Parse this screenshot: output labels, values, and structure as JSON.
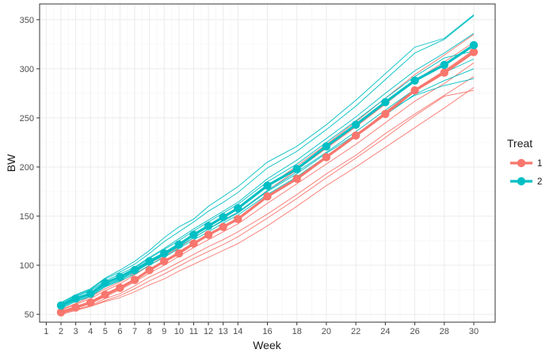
{
  "chart_data": {
    "type": "line",
    "xlabel": "Week",
    "ylabel": "BW",
    "xlim": [
      0.55,
      31.45
    ],
    "ylim": [
      42,
      366
    ],
    "x_ticks": [
      1,
      2,
      3,
      4,
      5,
      6,
      7,
      8,
      9,
      10,
      11,
      12,
      13,
      14,
      16,
      18,
      20,
      22,
      24,
      26,
      28,
      30
    ],
    "y_ticks": [
      50,
      100,
      150,
      200,
      250,
      300,
      350
    ],
    "grid": true,
    "legend": {
      "title": "Treat",
      "placement": "right"
    },
    "colors": {
      "1": "#F8766D",
      "2": "#00BFC4"
    },
    "weeks": [
      2,
      3,
      4,
      5,
      6,
      7,
      8,
      9,
      10,
      11,
      12,
      13,
      14,
      16,
      18,
      20,
      22,
      24,
      26,
      28,
      30
    ],
    "series": [
      {
        "name": "1",
        "values": [
          52,
          57,
          62,
          70,
          77,
          85,
          95,
          104,
          112,
          122,
          131,
          139,
          147,
          170,
          188,
          210,
          232,
          254,
          278,
          296,
          317
        ]
      },
      {
        "name": "2",
        "values": [
          59,
          66,
          71,
          82,
          88,
          95,
          104,
          112,
          121,
          131,
          140,
          149,
          158,
          181,
          198,
          221,
          243,
          266,
          288,
          304,
          324
        ]
      }
    ],
    "individual_series": [
      {
        "treat": "1",
        "values": [
          50,
          54,
          58,
          63,
          67,
          73,
          80,
          86,
          94,
          101,
          108,
          115,
          122,
          140,
          160,
          181,
          200,
          220,
          240,
          260,
          281
        ]
      },
      {
        "treat": "1",
        "values": [
          51,
          55,
          59,
          66,
          71,
          79,
          88,
          95,
          103,
          111,
          119,
          126,
          134,
          152,
          172,
          193,
          212,
          234,
          254,
          273,
          292
        ]
      },
      {
        "treat": "1",
        "values": [
          53,
          58,
          63,
          71,
          78,
          86,
          96,
          104,
          114,
          123,
          131,
          140,
          148,
          169,
          189,
          211,
          232,
          256,
          279,
          298,
          319
        ]
      },
      {
        "treat": "1",
        "values": [
          54,
          60,
          66,
          74,
          81,
          90,
          100,
          109,
          118,
          128,
          137,
          146,
          154,
          176,
          197,
          219,
          241,
          264,
          288,
          307,
          327
        ]
      },
      {
        "treat": "1",
        "values": [
          55,
          61,
          68,
          76,
          83,
          92,
          103,
          112,
          121,
          131,
          141,
          150,
          158,
          180,
          201,
          223,
          246,
          270,
          294,
          314,
          335
        ]
      },
      {
        "treat": "1",
        "values": [
          52,
          57,
          62,
          70,
          77,
          85,
          95,
          104,
          112,
          122,
          131,
          139,
          147,
          170,
          188,
          210,
          232,
          254,
          278,
          296,
          317
        ]
      },
      {
        "treat": "1",
        "values": [
          51,
          56,
          61,
          68,
          75,
          83,
          92,
          100,
          109,
          118,
          126,
          134,
          142,
          163,
          183,
          203,
          223,
          245,
          267,
          285,
          306
        ]
      },
      {
        "treat": "1",
        "values": [
          50,
          54,
          58,
          64,
          69,
          76,
          84,
          91,
          99,
          107,
          114,
          121,
          129,
          148,
          168,
          189,
          209,
          230,
          252,
          272,
          278
        ]
      },
      {
        "treat": "2",
        "values": [
          56,
          63,
          68,
          78,
          84,
          91,
          100,
          108,
          117,
          126,
          134,
          143,
          151,
          172,
          190,
          211,
          231,
          253,
          274,
          288,
          300
        ]
      },
      {
        "treat": "2",
        "values": [
          58,
          65,
          70,
          80,
          86,
          93,
          102,
          110,
          119,
          128,
          137,
          146,
          154,
          176,
          195,
          215,
          236,
          258,
          279,
          296,
          310
        ]
      },
      {
        "treat": "2",
        "values": [
          59,
          66,
          71,
          82,
          88,
          95,
          104,
          112,
          121,
          131,
          140,
          149,
          158,
          181,
          198,
          221,
          243,
          266,
          288,
          304,
          324
        ]
      },
      {
        "treat": "2",
        "values": [
          60,
          68,
          74,
          84,
          91,
          98,
          108,
          117,
          127,
          137,
          146,
          155,
          164,
          188,
          207,
          229,
          251,
          275,
          298,
          316,
          336
        ]
      },
      {
        "treat": "2",
        "values": [
          61,
          69,
          75,
          86,
          93,
          101,
          112,
          124,
          134,
          144,
          155,
          164,
          174,
          199,
          216,
          238,
          262,
          289,
          316,
          330,
          354
        ]
      },
      {
        "treat": "2",
        "values": [
          62,
          70,
          76,
          87,
          95,
          104,
          115,
          128,
          139,
          147,
          160,
          170,
          180,
          205,
          221,
          243,
          268,
          295,
          322,
          331,
          355
        ]
      },
      {
        "treat": "2",
        "values": [
          57,
          64,
          69,
          79,
          85,
          93,
          102,
          111,
          119,
          128,
          137,
          145,
          153,
          175,
          193,
          214,
          233,
          255,
          273,
          283,
          290
        ]
      },
      {
        "treat": "2",
        "values": [
          58,
          66,
          72,
          82,
          89,
          97,
          107,
          116,
          125,
          135,
          144,
          153,
          162,
          185,
          203,
          225,
          247,
          270,
          292,
          311,
          318
        ]
      }
    ]
  }
}
